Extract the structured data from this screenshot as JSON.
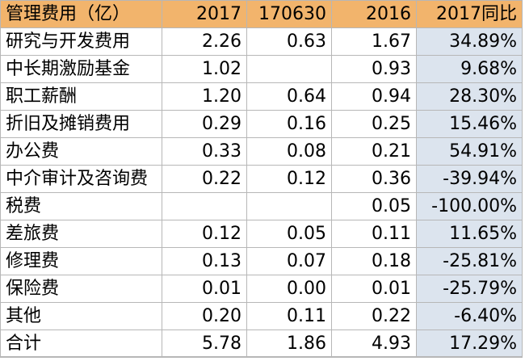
{
  "header": {
    "label": "管理费用（亿）",
    "col_2017": "2017",
    "col_170630": "170630",
    "col_2016": "2016",
    "col_yoy": "2017同比"
  },
  "rows": [
    {
      "label": "研究与开发费用",
      "v2017": "2.26",
      "v170630": "0.63",
      "v2016": "1.67",
      "yoy": "34.89%"
    },
    {
      "label": "中长期激励基金",
      "v2017": "1.02",
      "v170630": "",
      "v2016": "0.93",
      "yoy": "9.68%"
    },
    {
      "label": "职工薪酬",
      "v2017": "1.20",
      "v170630": "0.64",
      "v2016": "0.94",
      "yoy": "28.30%"
    },
    {
      "label": "折旧及摊销费用",
      "v2017": "0.29",
      "v170630": "0.16",
      "v2016": "0.25",
      "yoy": "15.46%"
    },
    {
      "label": "办公费",
      "v2017": "0.33",
      "v170630": "0.08",
      "v2016": "0.21",
      "yoy": "54.91%"
    },
    {
      "label": "中介审计及咨询费",
      "v2017": "0.22",
      "v170630": "0.12",
      "v2016": "0.36",
      "yoy": "-39.94%"
    },
    {
      "label": "税费",
      "v2017": "",
      "v170630": "",
      "v2016": "0.05",
      "yoy": "-100.00%"
    },
    {
      "label": "差旅费",
      "v2017": "0.12",
      "v170630": "0.05",
      "v2016": "0.11",
      "yoy": "11.65%"
    },
    {
      "label": "修理费",
      "v2017": "0.13",
      "v170630": "0.07",
      "v2016": "0.18",
      "yoy": "-25.81%"
    },
    {
      "label": "保险费",
      "v2017": "0.01",
      "v170630": "0.00",
      "v2016": "0.01",
      "yoy": "-25.79%"
    },
    {
      "label": "其他",
      "v2017": "0.20",
      "v170630": "0.11",
      "v2016": "0.22",
      "yoy": "-6.40%"
    },
    {
      "label": "合计",
      "v2017": "5.78",
      "v170630": "1.86",
      "v2016": "4.93",
      "yoy": "17.29%"
    }
  ],
  "colors": {
    "header_bg": "#f2b46c",
    "yoy_bg": "#dce4ee",
    "grid": "#b7b7b7"
  }
}
